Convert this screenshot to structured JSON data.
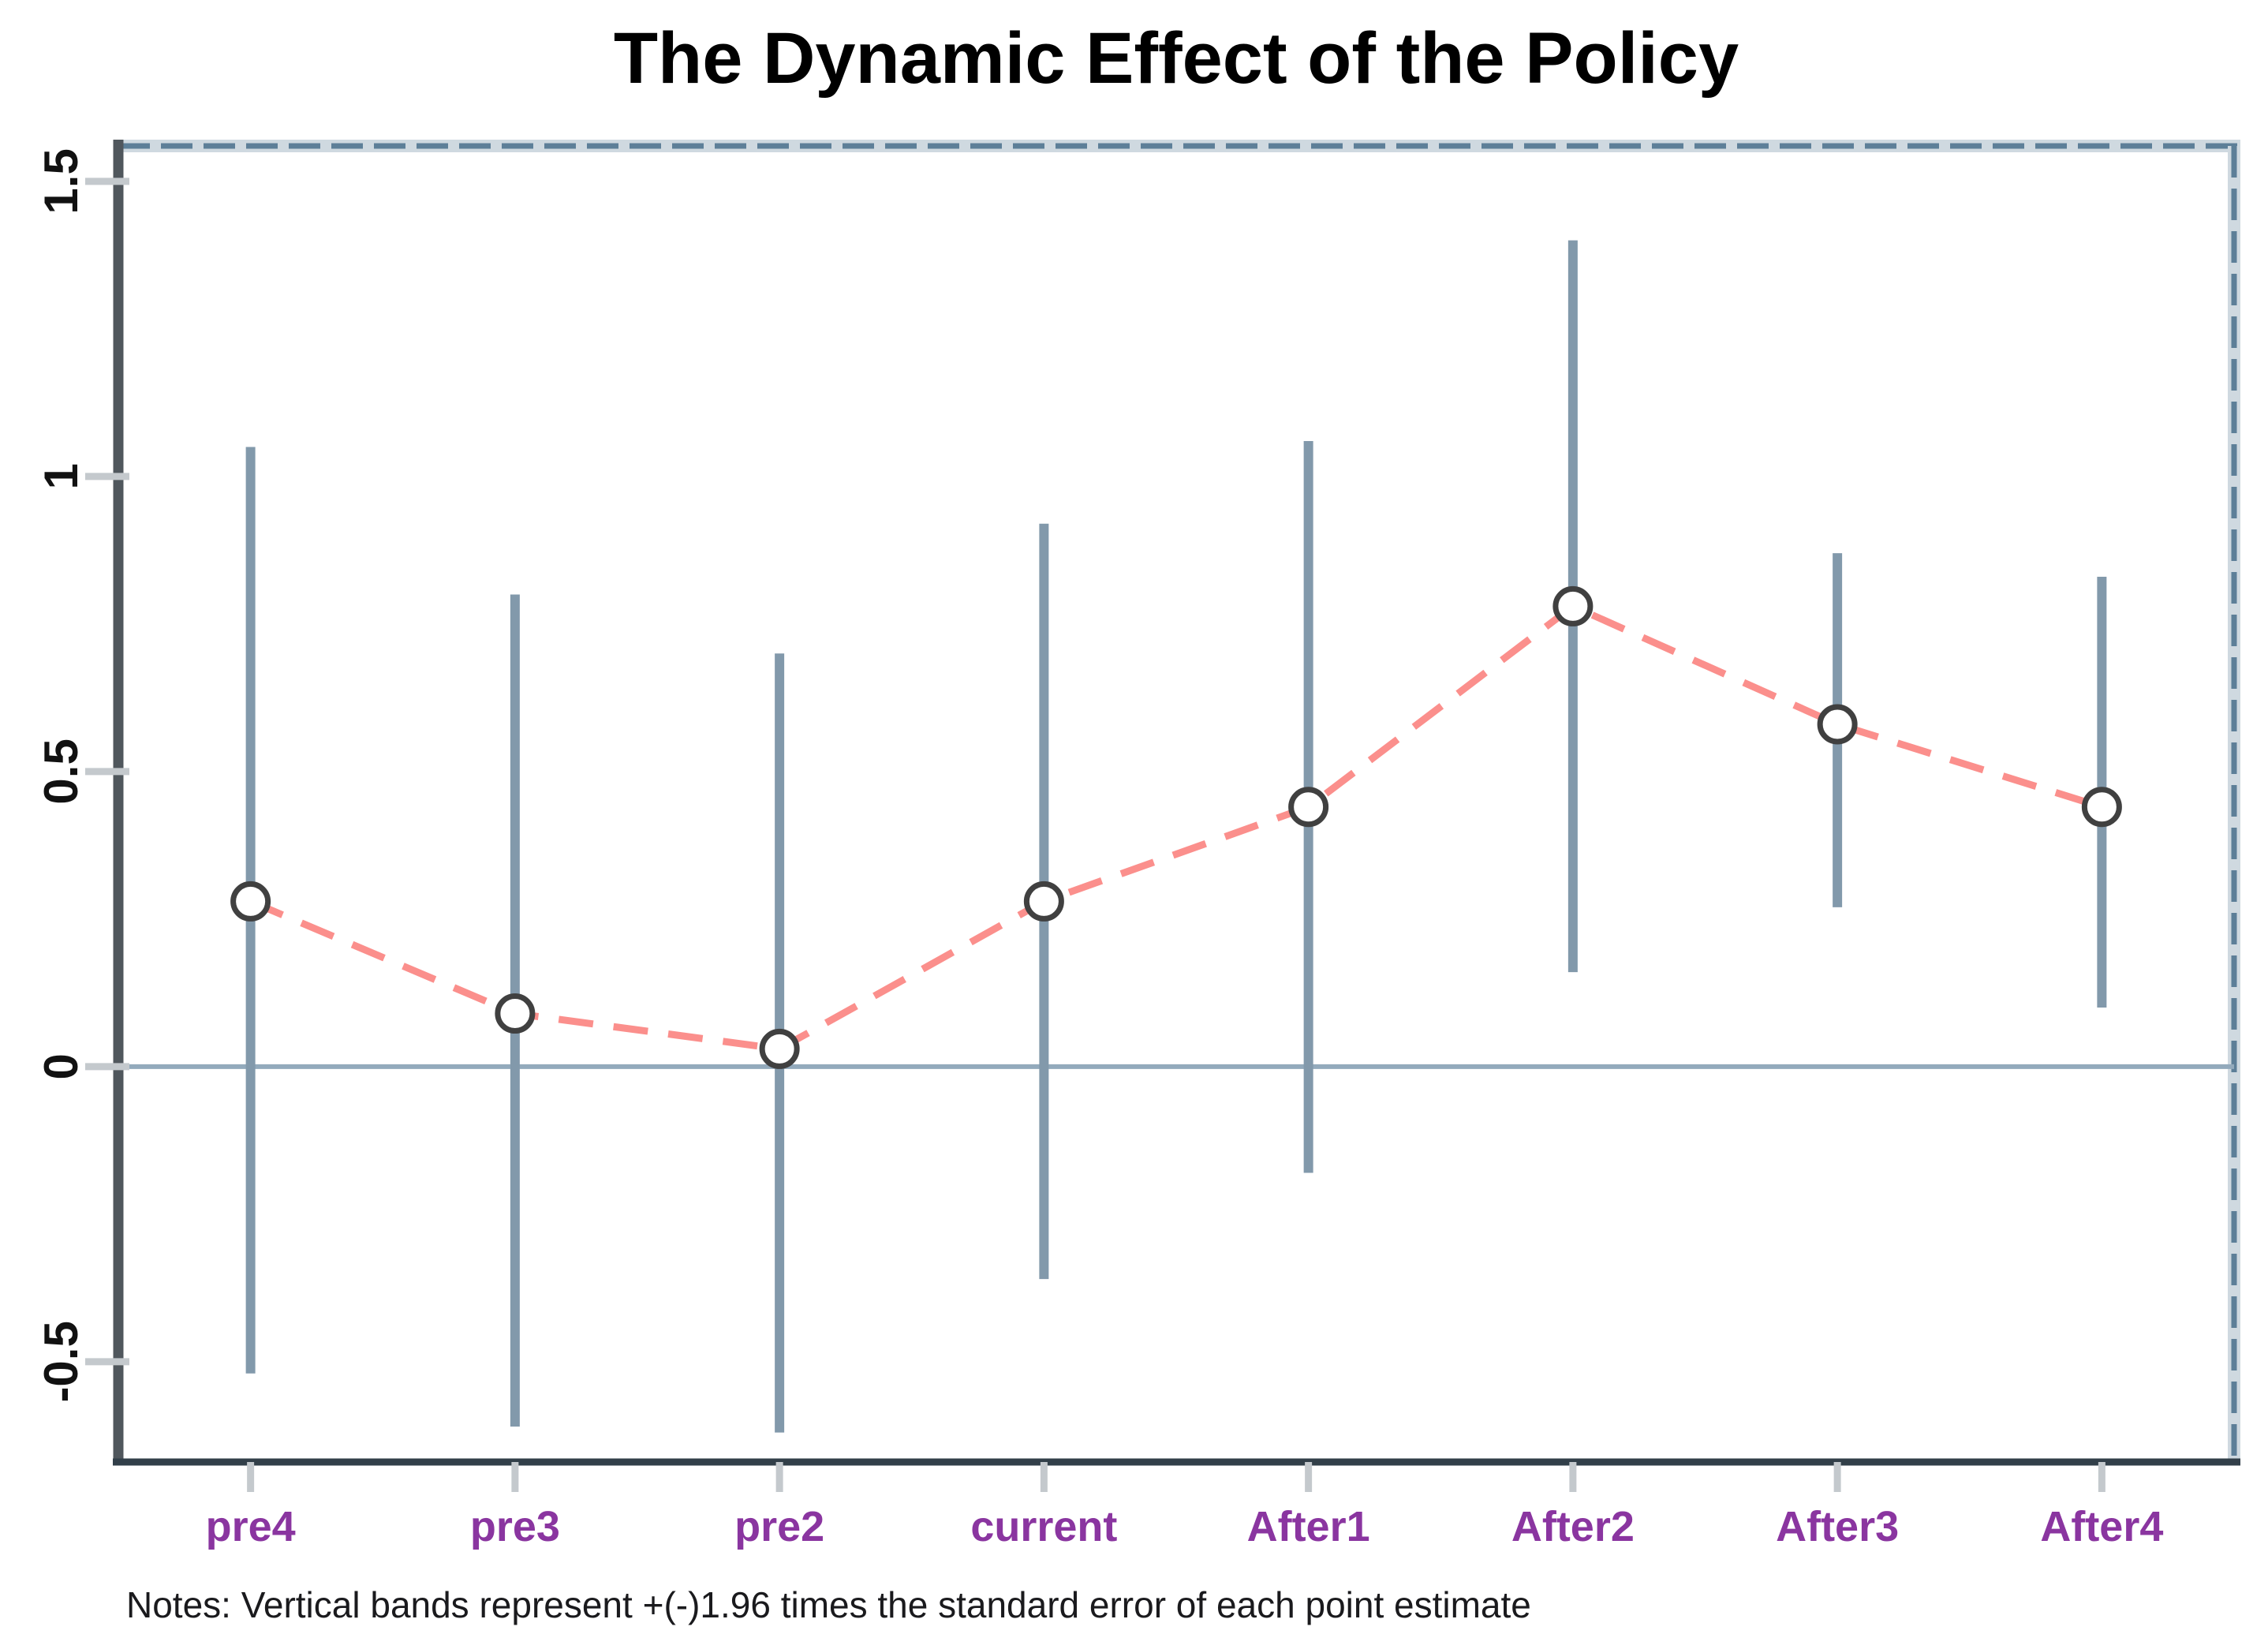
{
  "chart_data": {
    "type": "line",
    "title": "The Dynamic Effect of the Policy",
    "categories": [
      "pre4",
      "pre3",
      "pre2",
      "current",
      "After1",
      "After2",
      "After3",
      "After4"
    ],
    "series": [
      {
        "name": "point-estimate",
        "values": [
          0.28,
          0.09,
          0.03,
          0.28,
          0.44,
          0.78,
          0.58,
          0.44
        ]
      },
      {
        "name": "ci-lower",
        "values": [
          -0.52,
          -0.61,
          -0.62,
          -0.36,
          -0.18,
          0.16,
          0.27,
          0.1
        ]
      },
      {
        "name": "ci-upper",
        "values": [
          1.05,
          0.8,
          0.7,
          0.92,
          1.06,
          1.4,
          0.87,
          0.83
        ]
      }
    ],
    "xlabel": "",
    "ylabel": "",
    "ylim": [
      -0.67,
      1.56
    ],
    "yticks": [
      -0.5,
      0,
      0.5,
      1,
      1.5
    ],
    "ytick_labels": [
      "-0.5",
      "0",
      "0.5",
      "1",
      "1.5"
    ],
    "zero_line": 0,
    "grid": false,
    "legend_position": "none",
    "marker": "open-circle",
    "line_style": "dashed",
    "notes": "Notes: Vertical bands represent +(-)1.96 times the standard error of each point estimate",
    "colors": {
      "estimate_line": "#fb8f8c",
      "marker_fill": "#ffffff",
      "marker_stroke": "#404040",
      "ci_bar": "#8299ab",
      "zero_line": "#93aabc",
      "axis_left": "#50575d",
      "axis_bottom": "#323f49",
      "axis_top_right": "#5d7f98",
      "axis_top_right_band": "#cfd9e0",
      "tick_mark": "#c4c9cd",
      "xtick_label": "#8a35a0",
      "ytick_label": "#111111",
      "title": "#000000",
      "notes_text": "#1a1a1d"
    }
  }
}
